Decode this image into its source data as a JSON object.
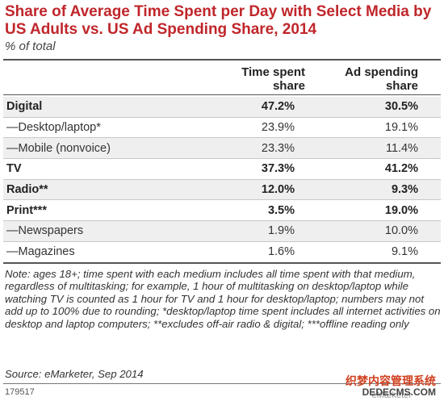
{
  "header": {
    "title": "Share of Average Time Spent per Day with Select Media by US Adults vs. US Ad Spending Share, 2014",
    "subtitle": "% of total"
  },
  "chart_data": {
    "type": "table",
    "columns": [
      "",
      "Time spent share",
      "Ad spending share"
    ],
    "rows": [
      {
        "label": "Digital",
        "time": "47.2%",
        "ad": "30.5%",
        "bold": true
      },
      {
        "label": "—Desktop/laptop*",
        "time": "23.9%",
        "ad": "19.1%",
        "bold": false
      },
      {
        "label": "—Mobile (nonvoice)",
        "time": "23.3%",
        "ad": "11.4%",
        "bold": false
      },
      {
        "label": "TV",
        "time": "37.3%",
        "ad": "41.2%",
        "bold": true
      },
      {
        "label": "Radio**",
        "time": "12.0%",
        "ad": "9.3%",
        "bold": true
      },
      {
        "label": "Print***",
        "time": "3.5%",
        "ad": "19.0%",
        "bold": true
      },
      {
        "label": "—Newspapers",
        "time": "1.9%",
        "ad": "10.0%",
        "bold": false
      },
      {
        "label": "—Magazines",
        "time": "1.6%",
        "ad": "9.1%",
        "bold": false
      }
    ]
  },
  "footer": {
    "note": "Note: ages 18+; time spent with each medium includes all time spent with that medium, regardless of multitasking; for example, 1 hour of multitasking on desktop/laptop while watching TV is counted as 1 hour for TV and 1 hour for desktop/laptop; numbers may not add up to 100% due to rounding; *desktop/laptop time spent includes all internet activities on desktop and laptop computers; **excludes off-air radio & digital; ***offline reading only",
    "source": "Source: eMarketer, Sep 2014",
    "chart_id": "179517",
    "logo": "eMarketer",
    "watermark1": "织梦内容管理系统",
    "watermark2": "DEDECMS.COM"
  }
}
